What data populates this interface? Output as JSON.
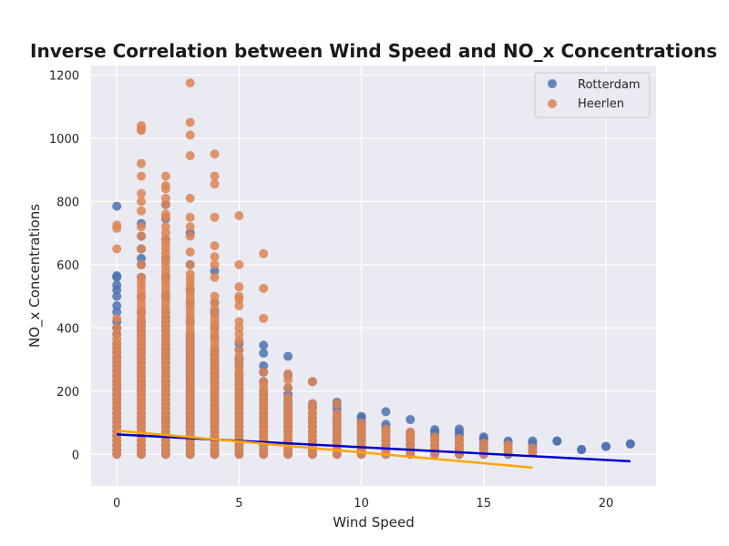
{
  "chart_data": {
    "type": "scatter",
    "title": "Inverse Correlation between Wind Speed and NO_x Concentrations",
    "xlabel": "Wind Speed",
    "ylabel": "NO_x Concentrations",
    "xlim": [
      -1.05,
      22.05
    ],
    "ylim": [
      -100,
      1230
    ],
    "xticks": [
      0,
      5,
      10,
      15,
      20
    ],
    "yticks": [
      0,
      200,
      400,
      600,
      800,
      1000,
      1200
    ],
    "grid": true,
    "legend_position": "top-right",
    "series": [
      {
        "name": "Rotterdam",
        "color": "#4c72b0",
        "columns": [
          {
            "x": 0,
            "min": 0,
            "dense_max": 350,
            "outliers": [
              380,
              400,
              420,
              450,
              470,
              500,
              520,
              535,
              560,
              565,
              785
            ]
          },
          {
            "x": 1,
            "min": 0,
            "dense_max": 420,
            "outliers": [
              450,
              500,
              560,
              600,
              620,
              650,
              690,
              730
            ]
          },
          {
            "x": 2,
            "min": 0,
            "dense_max": 450,
            "outliers": [
              500,
              560,
              620,
              680,
              745,
              790
            ]
          },
          {
            "x": 3,
            "min": 0,
            "dense_max": 380,
            "outliers": [
              420,
              480,
              520,
              600,
              700
            ]
          },
          {
            "x": 4,
            "min": 0,
            "dense_max": 330,
            "outliers": [
              370,
              400,
              450,
              480,
              580
            ]
          },
          {
            "x": 5,
            "min": 0,
            "dense_max": 250,
            "outliers": [
              280,
              300,
              330,
              350
            ]
          },
          {
            "x": 6,
            "min": 0,
            "dense_max": 200,
            "outliers": [
              230,
              260,
              280,
              320,
              345
            ]
          },
          {
            "x": 7,
            "min": 0,
            "dense_max": 170,
            "outliers": [
              190,
              210,
              250,
              310
            ]
          },
          {
            "x": 8,
            "min": 0,
            "dense_max": 130,
            "outliers": [
              150,
              160,
              230
            ]
          },
          {
            "x": 9,
            "min": 0,
            "dense_max": 120,
            "outliers": [
              140,
              155,
              165
            ]
          },
          {
            "x": 10,
            "min": 0,
            "dense_max": 95,
            "outliers": [
              105,
              115,
              120
            ]
          },
          {
            "x": 11,
            "min": 0,
            "dense_max": 75,
            "outliers": [
              85,
              95,
              135
            ]
          },
          {
            "x": 12,
            "min": 0,
            "dense_max": 60,
            "outliers": [
              70,
              110
            ]
          },
          {
            "x": 13,
            "min": 0,
            "dense_max": 60,
            "outliers": [
              70,
              78
            ]
          },
          {
            "x": 14,
            "min": 0,
            "dense_max": 60,
            "outliers": [
              70,
              80
            ]
          },
          {
            "x": 15,
            "min": 0,
            "dense_max": 45,
            "outliers": [
              50,
              55
            ]
          },
          {
            "x": 16,
            "min": 0,
            "dense_max": 35,
            "outliers": [
              42
            ]
          },
          {
            "x": 17,
            "min": 10,
            "dense_max": 35,
            "outliers": [
              42
            ]
          },
          {
            "x": 18,
            "min": 42,
            "dense_max": 42,
            "outliers": []
          },
          {
            "x": 19,
            "min": 15,
            "dense_max": 15,
            "outliers": []
          },
          {
            "x": 20,
            "min": 25,
            "dense_max": 25,
            "outliers": []
          },
          {
            "x": 21,
            "min": 33,
            "dense_max": 33,
            "outliers": []
          }
        ],
        "trendline": {
          "x": [
            0,
            21
          ],
          "y": [
            63,
            -22
          ],
          "color": "#0000cd"
        }
      },
      {
        "name": "Heerlen",
        "color": "#dd8452",
        "columns": [
          {
            "x": 0,
            "min": 0,
            "dense_max": 380,
            "outliers": [
              400,
              430,
              650,
              715,
              725
            ]
          },
          {
            "x": 1,
            "min": 0,
            "dense_max": 560,
            "outliers": [
              600,
              650,
              690,
              720,
              770,
              800,
              825,
              880,
              920,
              1025,
              1030,
              1040
            ]
          },
          {
            "x": 2,
            "min": 0,
            "dense_max": 680,
            "outliers": [
              700,
              720,
              750,
              760,
              790,
              810,
              840,
              850,
              880
            ]
          },
          {
            "x": 3,
            "min": 0,
            "dense_max": 570,
            "outliers": [
              600,
              640,
              690,
              720,
              750,
              810,
              945,
              1010,
              1050,
              1175
            ]
          },
          {
            "x": 4,
            "min": 0,
            "dense_max": 440,
            "outliers": [
              460,
              480,
              500,
              560,
              600,
              625,
              660,
              750,
              855,
              880,
              950
            ]
          },
          {
            "x": 5,
            "min": 0,
            "dense_max": 290,
            "outliers": [
              310,
              330,
              360,
              380,
              400,
              420,
              470,
              490,
              500,
              530,
              600,
              755
            ]
          },
          {
            "x": 6,
            "min": 0,
            "dense_max": 230,
            "outliers": [
              260,
              430,
              525,
              635
            ]
          },
          {
            "x": 7,
            "min": 0,
            "dense_max": 160,
            "outliers": [
              180,
              210,
              235,
              255
            ]
          },
          {
            "x": 8,
            "min": 0,
            "dense_max": 130,
            "outliers": [
              145,
              160,
              230
            ]
          },
          {
            "x": 9,
            "min": 0,
            "dense_max": 100,
            "outliers": [
              115,
              130,
              160
            ]
          },
          {
            "x": 10,
            "min": 0,
            "dense_max": 75,
            "outliers": [
              85,
              100
            ]
          },
          {
            "x": 11,
            "min": 0,
            "dense_max": 60,
            "outliers": [
              70,
              80
            ]
          },
          {
            "x": 12,
            "min": 0,
            "dense_max": 50,
            "outliers": [
              60,
              70
            ]
          },
          {
            "x": 13,
            "min": 0,
            "dense_max": 45,
            "outliers": [
              55
            ]
          },
          {
            "x": 14,
            "min": 0,
            "dense_max": 40,
            "outliers": [
              50
            ]
          },
          {
            "x": 15,
            "min": 0,
            "dense_max": 35,
            "outliers": []
          },
          {
            "x": 16,
            "min": 5,
            "dense_max": 30,
            "outliers": []
          },
          {
            "x": 17,
            "min": 5,
            "dense_max": 20,
            "outliers": []
          }
        ],
        "trendline": {
          "x": [
            0,
            17
          ],
          "y": [
            75,
            -42
          ],
          "color": "#ffa500"
        }
      }
    ]
  }
}
